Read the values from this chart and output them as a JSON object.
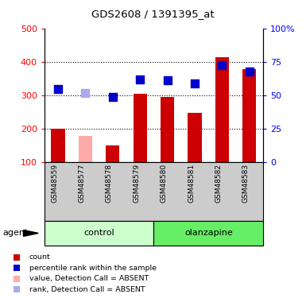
{
  "title": "GDS2608 / 1391395_at",
  "samples": [
    "GSM48559",
    "GSM48577",
    "GSM48578",
    "GSM48579",
    "GSM48580",
    "GSM48581",
    "GSM48582",
    "GSM48583"
  ],
  "bar_values": [
    200,
    180,
    150,
    305,
    295,
    247,
    413,
    378
  ],
  "bar_absent": [
    false,
    true,
    false,
    false,
    false,
    false,
    false,
    false
  ],
  "rank_values": [
    55,
    52,
    49,
    62,
    61.5,
    59,
    72.5,
    67.5
  ],
  "rank_absent": [
    false,
    true,
    false,
    false,
    false,
    false,
    false,
    false
  ],
  "bar_color_normal": "#cc0000",
  "bar_color_absent": "#ffaaaa",
  "rank_color_normal": "#0000cc",
  "rank_color_absent": "#aaaaee",
  "ylim_left": [
    100,
    500
  ],
  "ylim_right": [
    0,
    100
  ],
  "yticks_left": [
    100,
    200,
    300,
    400,
    500
  ],
  "yticks_right": [
    0,
    25,
    50,
    75,
    100
  ],
  "yticklabels_right": [
    "0",
    "25",
    "50",
    "75",
    "100%"
  ],
  "grid_lines": [
    200,
    300,
    400
  ],
  "groups": [
    {
      "label": "control",
      "start": 0,
      "end": 4,
      "color": "#ccffcc"
    },
    {
      "label": "olanzapine",
      "start": 4,
      "end": 8,
      "color": "#66ee66"
    }
  ],
  "bar_width": 0.5,
  "rank_marker_size": 45,
  "legend_items": [
    {
      "label": "count",
      "color": "#cc0000"
    },
    {
      "label": "percentile rank within the sample",
      "color": "#0000cc"
    },
    {
      "label": "value, Detection Call = ABSENT",
      "color": "#ffaaaa"
    },
    {
      "label": "rank, Detection Call = ABSENT",
      "color": "#aaaaee"
    }
  ]
}
